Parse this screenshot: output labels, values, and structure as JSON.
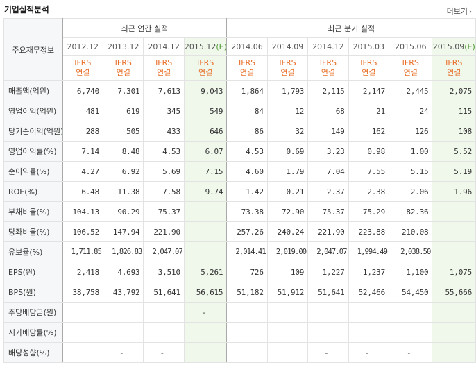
{
  "header": {
    "title": "기업실적분석",
    "more_label": "더보기",
    "more_icon": "chevron-right-icon"
  },
  "table": {
    "label_header": "주요재무정보",
    "annual_group": "최근 연간 실적",
    "quarter_group": "최근 분기 실적",
    "estimate_color": "#f0f8ec",
    "ifrs_color": "#e8702a",
    "periods": [
      {
        "label": "2012.12",
        "estimate": false
      },
      {
        "label": "2013.12",
        "estimate": false
      },
      {
        "label": "2014.12",
        "estimate": false
      },
      {
        "label": "2015.12",
        "estimate": true,
        "estimate_mark": "(E)"
      },
      {
        "label": "2014.06",
        "estimate": false
      },
      {
        "label": "2014.09",
        "estimate": false
      },
      {
        "label": "2014.12",
        "estimate": false
      },
      {
        "label": "2015.03",
        "estimate": false
      },
      {
        "label": "2015.06",
        "estimate": false
      },
      {
        "label": "2015.09",
        "estimate": true,
        "estimate_mark": "(E)"
      }
    ],
    "ifrs_line1": "IFRS",
    "ifrs_line2": "연결",
    "rows": [
      {
        "label": "매출액(억원)",
        "section": 1,
        "values": [
          "6,740",
          "7,301",
          "7,613",
          "9,043",
          "1,864",
          "1,793",
          "2,115",
          "2,147",
          "2,445",
          "2,075"
        ]
      },
      {
        "label": "영업이익(억원)",
        "section": 1,
        "values": [
          "481",
          "619",
          "345",
          "549",
          "84",
          "12",
          "68",
          "21",
          "24",
          "115"
        ]
      },
      {
        "label": "당기순이익(억원)",
        "section": 1,
        "values": [
          "288",
          "505",
          "433",
          "646",
          "86",
          "32",
          "149",
          "162",
          "126",
          "108"
        ]
      },
      {
        "label": "영업이익률(%)",
        "section": 2,
        "values": [
          "7.14",
          "8.48",
          "4.53",
          "6.07",
          "4.53",
          "0.69",
          "3.23",
          "0.98",
          "1.00",
          "5.52"
        ]
      },
      {
        "label": "순이익률(%)",
        "section": 2,
        "values": [
          "4.27",
          "6.92",
          "5.69",
          "7.15",
          "4.60",
          "1.79",
          "7.04",
          "7.55",
          "5.15",
          "5.19"
        ]
      },
      {
        "label": "ROE(%)",
        "section": 2,
        "values": [
          "6.48",
          "11.38",
          "7.58",
          "9.74",
          "1.42",
          "0.21",
          "2.37",
          "2.38",
          "2.06",
          "1.96"
        ]
      },
      {
        "label": "부채비율(%)",
        "section": 3,
        "values": [
          "104.13",
          "90.29",
          "75.37",
          "",
          "73.38",
          "72.90",
          "75.37",
          "75.29",
          "82.36",
          ""
        ]
      },
      {
        "label": "당좌비율(%)",
        "section": 3,
        "values": [
          "106.52",
          "147.94",
          "221.90",
          "",
          "257.26",
          "240.24",
          "221.90",
          "223.88",
          "210.08",
          ""
        ]
      },
      {
        "label": "유보율(%)",
        "section": 3,
        "values": [
          "1,711.85",
          "1,826.83",
          "2,047.07",
          "",
          "2,014.41",
          "2,019.00",
          "2,047.07",
          "1,994.49",
          "2,038.50",
          ""
        ]
      },
      {
        "label": "EPS(원)",
        "section": 4,
        "values": [
          "2,418",
          "4,693",
          "3,510",
          "5,261",
          "726",
          "109",
          "1,227",
          "1,237",
          "1,100",
          "1,075"
        ]
      },
      {
        "label": "BPS(원)",
        "section": 4,
        "values": [
          "38,758",
          "43,792",
          "51,641",
          "56,615",
          "51,182",
          "51,912",
          "51,641",
          "52,466",
          "54,450",
          "55,666"
        ]
      },
      {
        "label": "주당배당금(원)",
        "section": 5,
        "values": [
          "",
          "",
          "",
          "-",
          "",
          "",
          "",
          "",
          "",
          ""
        ]
      },
      {
        "label": "시가배당률(%)",
        "section": 5,
        "values": [
          "",
          "",
          "",
          "",
          "",
          "",
          "",
          "",
          "",
          ""
        ]
      },
      {
        "label": "배당성향(%)",
        "section": 5,
        "values": [
          "",
          "-",
          "-",
          "",
          "",
          "",
          "-",
          "-",
          "-",
          ""
        ]
      }
    ]
  }
}
